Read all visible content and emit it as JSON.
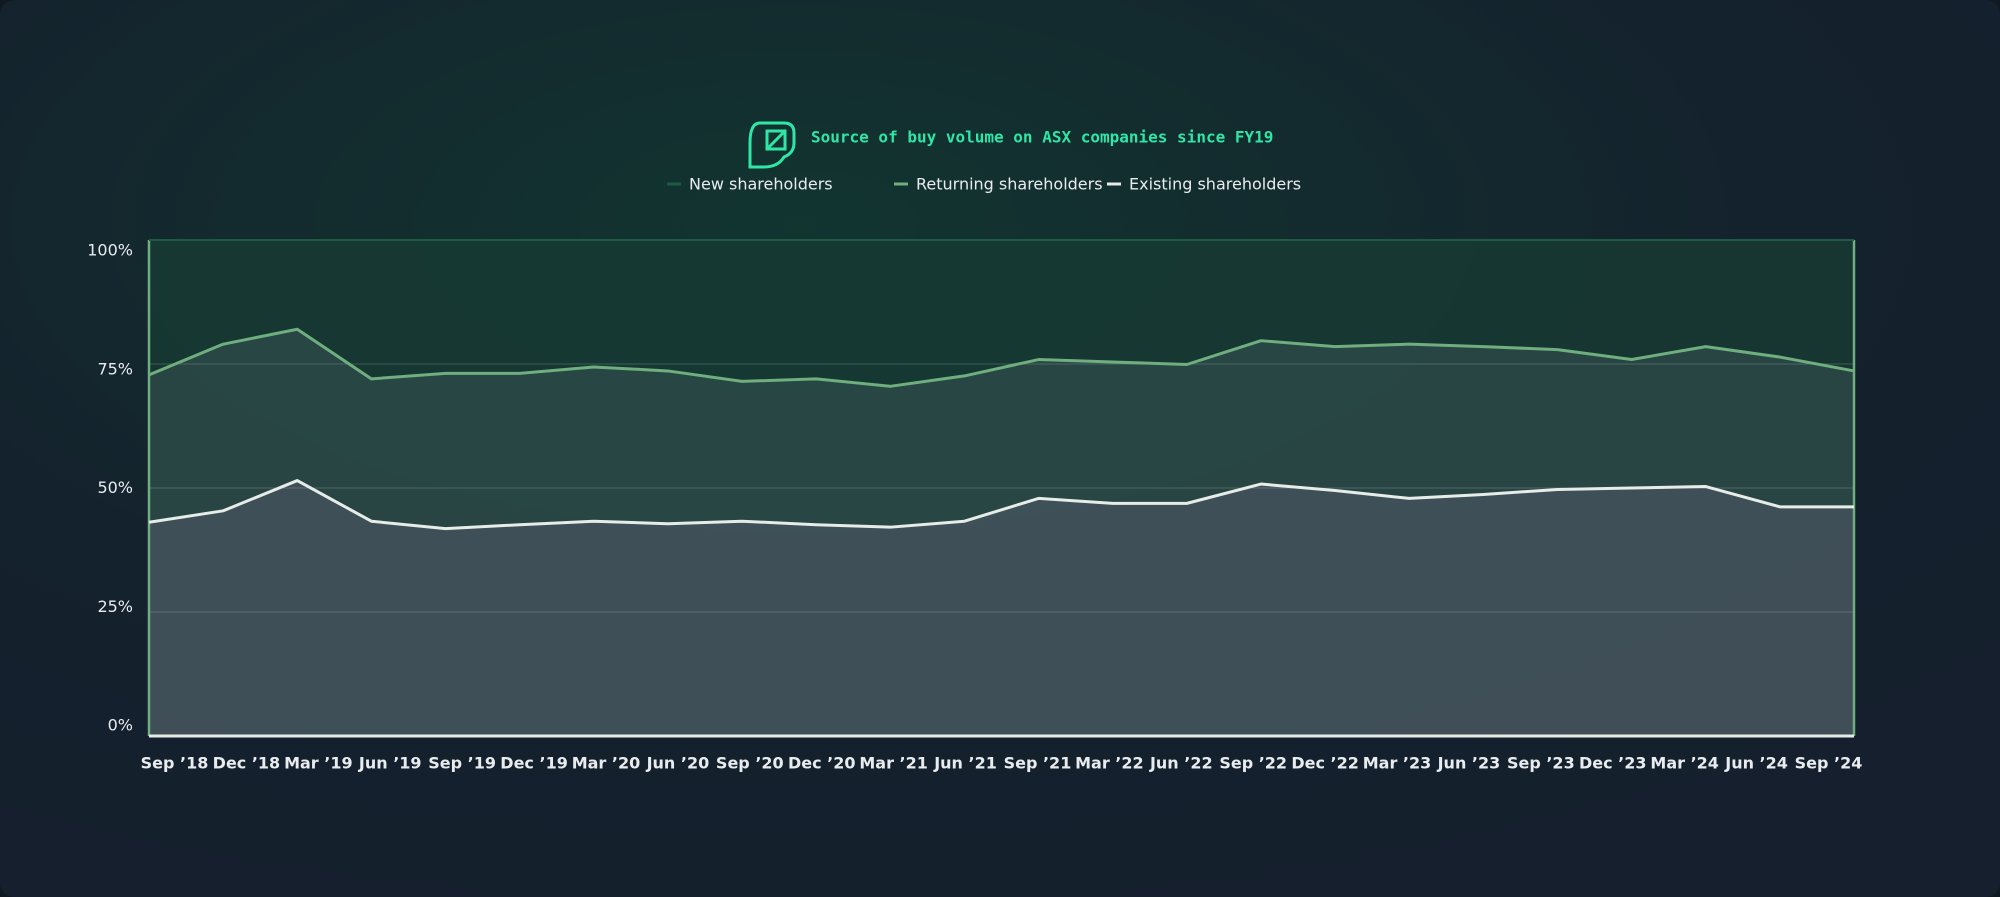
{
  "chart_data": {
    "type": "stacked_area",
    "title": "Source of buy volume on ASX companies since FY19",
    "categories": [
      "Sep ’18",
      "Dec ’18",
      "Mar ’19",
      "Jun ’19",
      "Sep ’19",
      "Dec ’19",
      "Mar ’20",
      "Jun ’20",
      "Sep ’20",
      "Dec ’20",
      "Mar ’21",
      "Jun ’21",
      "Sep ’21",
      "Mar ’22",
      "Jun ’22",
      "Sep ’22",
      "Dec ’22",
      "Mar ’23",
      "Jun ’23",
      "Sep ’23",
      "Dec ’23",
      "Mar ’24",
      "Jun ’24",
      "Sep ’24"
    ],
    "series": [
      {
        "name": "Existing shareholders",
        "color": "#e6ece8",
        "values": [
          43.1,
          45.4,
          51.5,
          43.3,
          41.8,
          42.6,
          43.3,
          42.8,
          43.3,
          42.6,
          42.1,
          43.3,
          47.9,
          46.9,
          46.9,
          50.8,
          49.5,
          47.9,
          48.7,
          49.7,
          50.0,
          50.3,
          46.2,
          46.2
        ]
      },
      {
        "name": "Returning shareholders",
        "color": "#6fae7e",
        "values": [
          29.7,
          33.6,
          30.5,
          28.7,
          31.3,
          30.5,
          31.1,
          30.8,
          28.2,
          29.4,
          28.4,
          29.3,
          28.0,
          28.5,
          28.0,
          28.9,
          29.0,
          31.1,
          29.8,
          28.2,
          25.9,
          28.2,
          30.2,
          27.4
        ]
      },
      {
        "name": "New shareholders",
        "color": "#1f5a44",
        "values": [
          27.2,
          21.0,
          18.0,
          28.0,
          26.9,
          26.9,
          25.6,
          26.4,
          28.5,
          28.0,
          29.5,
          27.4,
          24.1,
          24.6,
          25.1,
          20.3,
          21.5,
          21.0,
          21.5,
          22.1,
          24.1,
          21.5,
          23.6,
          26.4
        ]
      }
    ],
    "ylim": [
      0,
      100
    ],
    "yticks": [
      {
        "value": 0,
        "label": "0%"
      },
      {
        "value": 25,
        "label": "25%"
      },
      {
        "value": 50,
        "label": "50%"
      },
      {
        "value": 75,
        "label": "75%"
      },
      {
        "value": 100,
        "label": "100%"
      }
    ],
    "grid": true
  }
}
